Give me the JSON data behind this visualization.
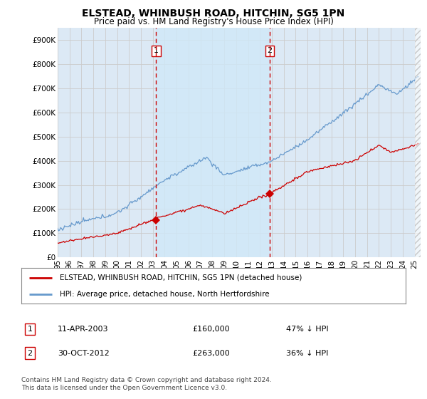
{
  "title": "ELSTEAD, WHINBUSH ROAD, HITCHIN, SG5 1PN",
  "subtitle": "Price paid vs. HM Land Registry's House Price Index (HPI)",
  "ylabel_ticks": [
    "£0",
    "£100K",
    "£200K",
    "£300K",
    "£400K",
    "£500K",
    "£600K",
    "£700K",
    "£800K",
    "£900K"
  ],
  "ytick_values": [
    0,
    100000,
    200000,
    300000,
    400000,
    500000,
    600000,
    700000,
    800000,
    900000
  ],
  "ylim": [
    0,
    950000
  ],
  "xlim_start": 1995.0,
  "xlim_end": 2025.5,
  "background_color": "#dce9f5",
  "plot_bg_color": "#dce9f5",
  "span_color": "#cce0f0",
  "grid_color": "#cccccc",
  "red_line_color": "#cc0000",
  "blue_line_color": "#6699cc",
  "vline_color": "#cc0000",
  "transaction1_date": 2003.28,
  "transaction1_price": 160000,
  "transaction1_label": "1",
  "transaction2_date": 2012.83,
  "transaction2_price": 263000,
  "transaction2_label": "2",
  "legend_red": "ELSTEAD, WHINBUSH ROAD, HITCHIN, SG5 1PN (detached house)",
  "legend_blue": "HPI: Average price, detached house, North Hertfordshire",
  "table_row1": [
    "1",
    "11-APR-2003",
    "£160,000",
    "47% ↓ HPI"
  ],
  "table_row2": [
    "2",
    "30-OCT-2012",
    "£263,000",
    "36% ↓ HPI"
  ],
  "footer": "Contains HM Land Registry data © Crown copyright and database right 2024.\nThis data is licensed under the Open Government Licence v3.0.",
  "xtick_years": [
    1995,
    1996,
    1997,
    1998,
    1999,
    2000,
    2001,
    2002,
    2003,
    2004,
    2005,
    2006,
    2007,
    2008,
    2009,
    2010,
    2011,
    2012,
    2013,
    2014,
    2015,
    2016,
    2017,
    2018,
    2019,
    2020,
    2021,
    2022,
    2023,
    2024,
    2025
  ]
}
